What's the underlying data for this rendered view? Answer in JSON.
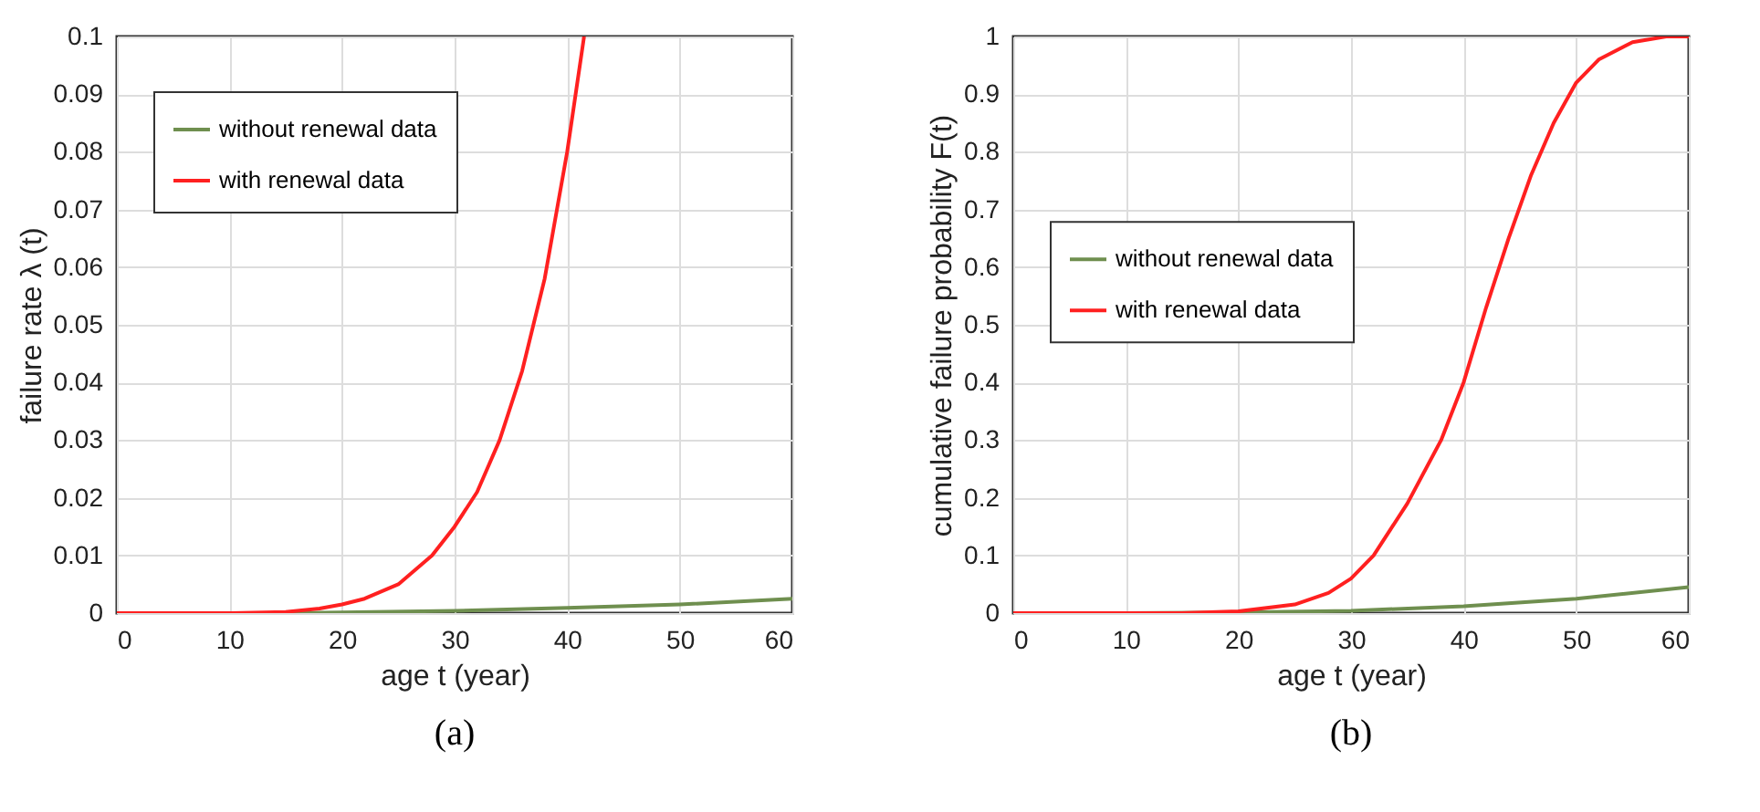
{
  "chart_data": [
    {
      "type": "line",
      "xlabel": "age t (year)",
      "ylabel": "failure rate λ (t)",
      "annotations": [
        "(a)"
      ],
      "xlim": [
        0,
        60
      ],
      "xticks": [
        0,
        10,
        20,
        30,
        40,
        50,
        60
      ],
      "ylim": [
        0,
        0.1
      ],
      "yticks": [
        0,
        0.01,
        0.02,
        0.03,
        0.04,
        0.05,
        0.06,
        0.07,
        0.08,
        0.09,
        0.1
      ],
      "grid": true,
      "legend": "top left",
      "line_style": "solid",
      "series": [
        {
          "name": "without renewal data",
          "color": "#6f8f4f",
          "x": [
            0,
            10,
            15,
            20,
            30,
            40,
            50,
            60
          ],
          "values": [
            0,
            0,
            0,
            0.0001,
            0.0004,
            0.0009,
            0.0015,
            0.0025
          ]
        },
        {
          "name": "with renewal data",
          "color": "#ff2020",
          "x": [
            0,
            10,
            15,
            18,
            20,
            22,
            25,
            28,
            30,
            32,
            34,
            36,
            38,
            40,
            41.5
          ],
          "values": [
            0,
            0,
            0.0002,
            0.0008,
            0.0015,
            0.0025,
            0.005,
            0.01,
            0.015,
            0.021,
            0.03,
            0.042,
            0.058,
            0.08,
            0.1
          ]
        }
      ]
    },
    {
      "type": "line",
      "xlabel": "age t (year)",
      "ylabel": "cumulative failure probability F(t)",
      "annotations": [
        "(b)"
      ],
      "xlim": [
        0,
        60
      ],
      "xticks": [
        0,
        10,
        20,
        30,
        40,
        50,
        60
      ],
      "ylim": [
        0,
        1
      ],
      "yticks": [
        0,
        0.1,
        0.2,
        0.3,
        0.4,
        0.5,
        0.6,
        0.7,
        0.8,
        0.9,
        1
      ],
      "grid": true,
      "legend": "left",
      "line_style": "solid",
      "series": [
        {
          "name": "without renewal data",
          "color": "#6f8f4f",
          "x": [
            0,
            10,
            20,
            30,
            40,
            50,
            60
          ],
          "values": [
            0,
            0,
            0.001,
            0.004,
            0.012,
            0.025,
            0.045
          ]
        },
        {
          "name": "with renewal data",
          "color": "#ff2020",
          "x": [
            0,
            10,
            15,
            20,
            25,
            28,
            30,
            32,
            35,
            38,
            40,
            42,
            44,
            46,
            48,
            50,
            52,
            55,
            58,
            60
          ],
          "values": [
            0,
            0,
            0,
            0.003,
            0.015,
            0.035,
            0.06,
            0.1,
            0.19,
            0.3,
            0.4,
            0.53,
            0.65,
            0.76,
            0.85,
            0.92,
            0.96,
            0.99,
            1,
            1
          ]
        }
      ]
    }
  ]
}
